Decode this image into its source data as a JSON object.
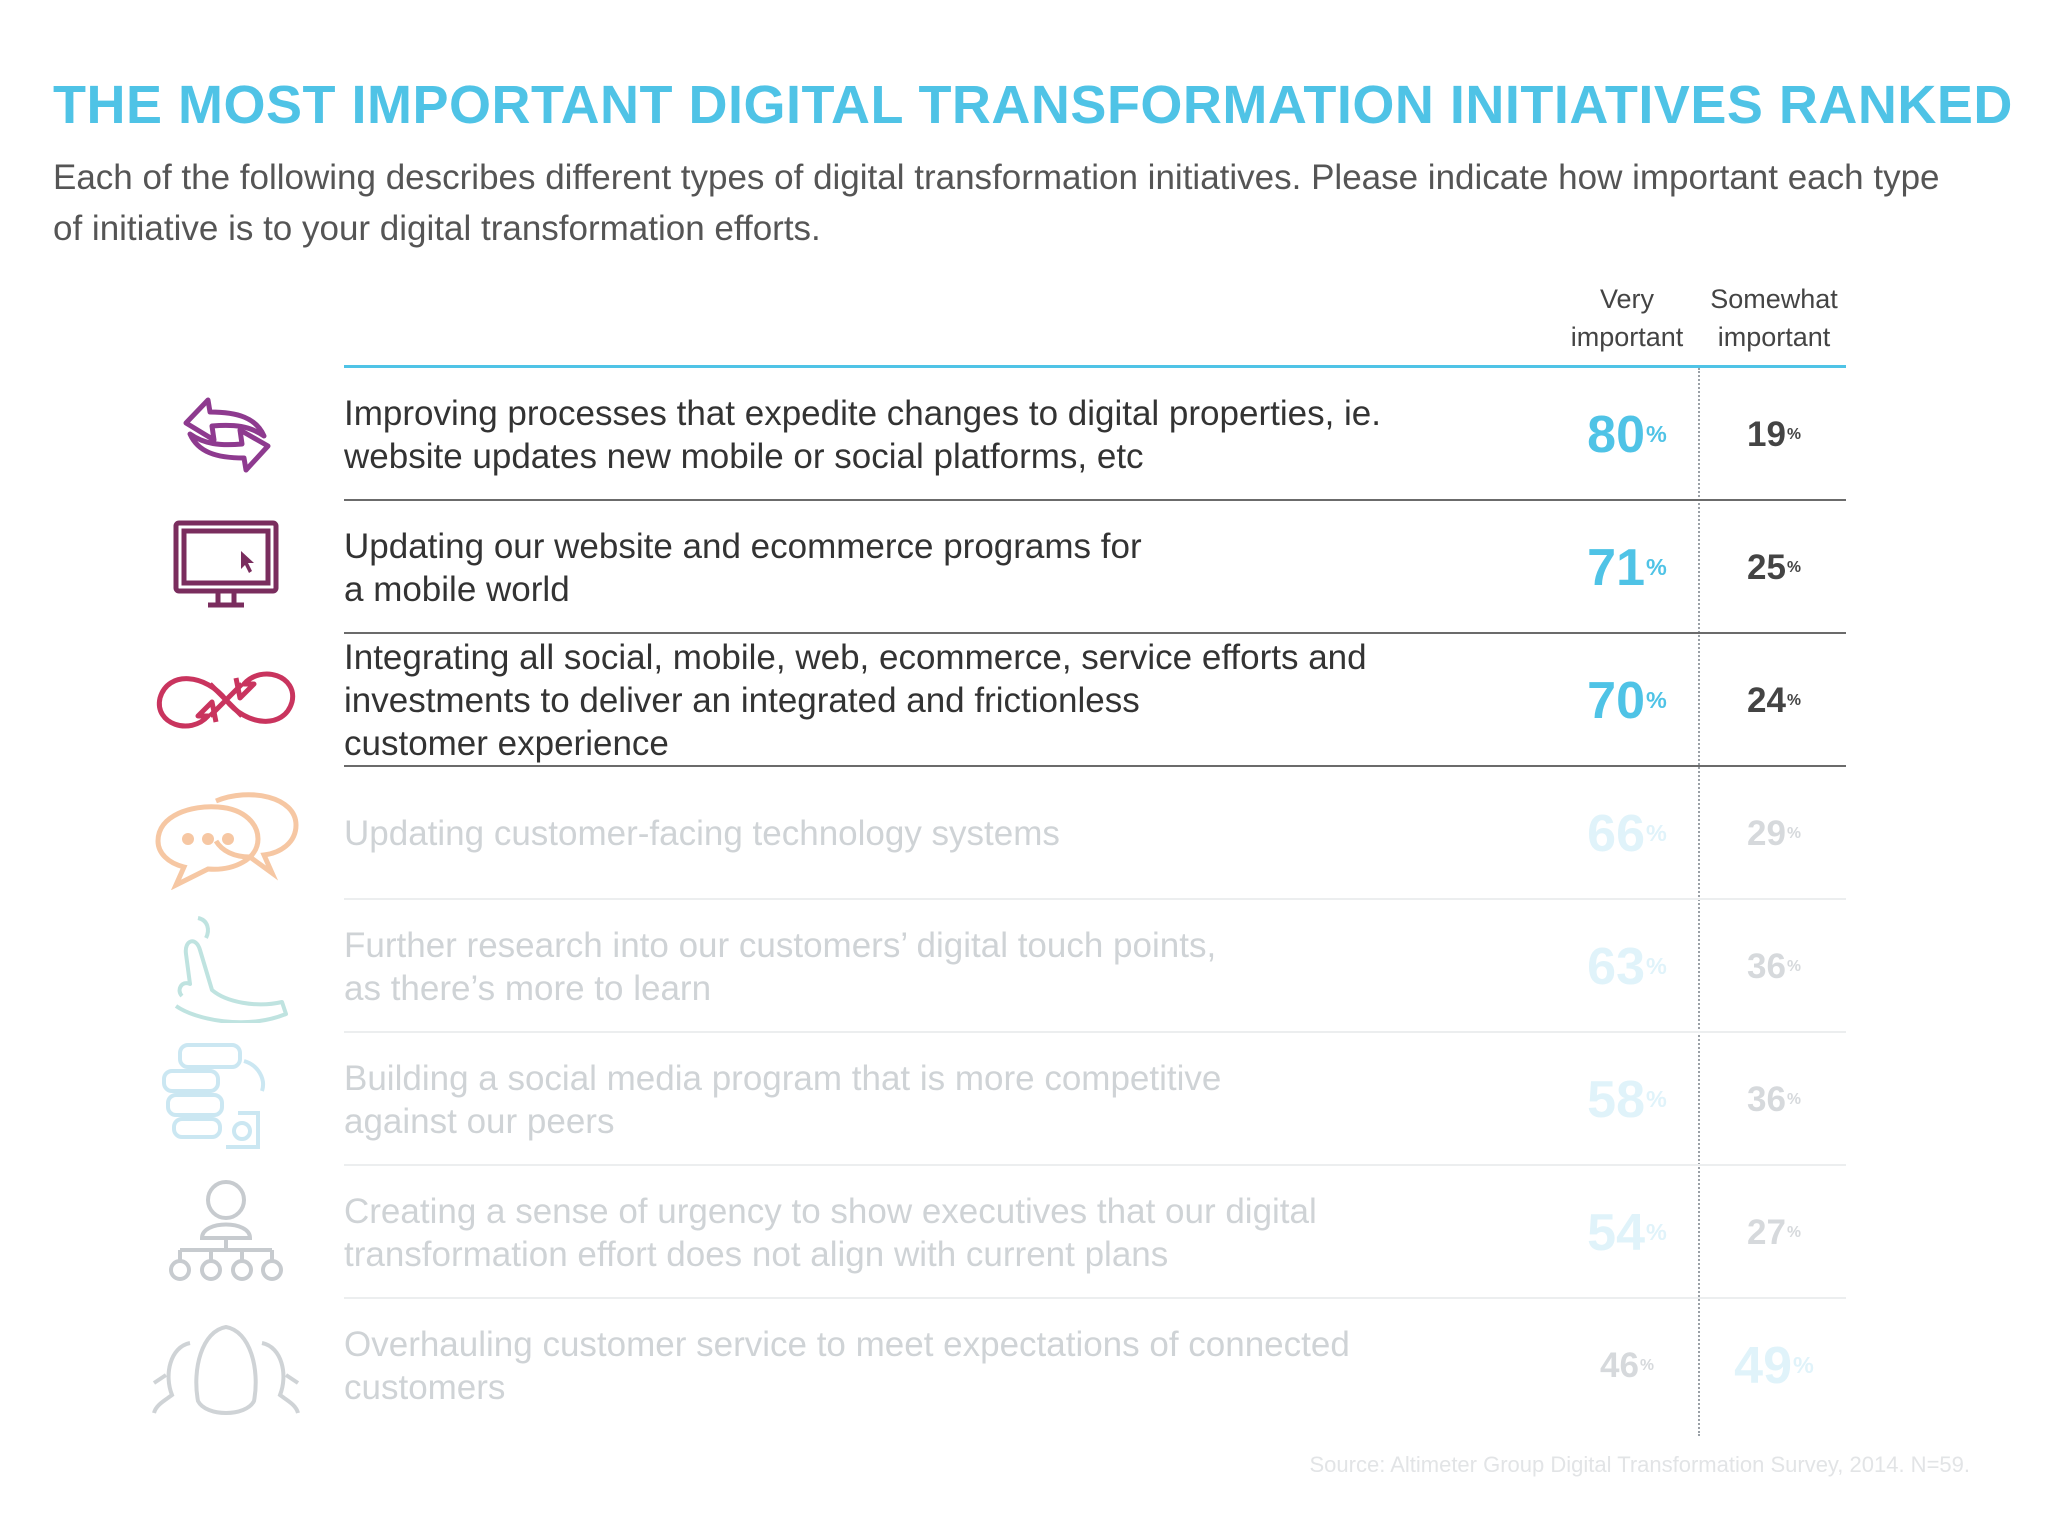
{
  "chart_data": {
    "type": "table",
    "title": "THE MOST IMPORTANT DIGITAL TRANSFORMATION INITIATIVES RANKED",
    "subtitle": "Each of the following describes different types of digital transformation initiatives. Please indicate how important each type of initiative is to your digital transformation efforts.",
    "columns": {
      "very": [
        "Very",
        "important"
      ],
      "somewhat": [
        "Somewhat",
        "important"
      ]
    },
    "pct_symbol": "%",
    "rows": [
      {
        "icon": "arrows-exchange-icon",
        "lines": [
          "Improving processes that expedite changes to digital properties, ie.",
          "website updates new mobile or social platforms, etc"
        ],
        "very": 80,
        "somewhat": 19,
        "color": "#8e3a8f"
      },
      {
        "icon": "monitor-cursor-icon",
        "lines": [
          "Updating our website and ecommerce programs for",
          "a mobile world"
        ],
        "very": 71,
        "somewhat": 25,
        "color": "#7a2d5e"
      },
      {
        "icon": "infinity-arrows-icon",
        "lines": [
          "Integrating all social, mobile, web, ecommerce, service efforts and",
          "investments to deliver an integrated and frictionless",
          "customer experience"
        ],
        "very": 70,
        "somewhat": 24,
        "color": "#c9345e"
      },
      {
        "icon": "speech-bubbles-icon",
        "lines": [
          "Updating customer-facing technology systems"
        ],
        "very": 66,
        "somewhat": 29,
        "color": "#f6c7a3"
      },
      {
        "icon": "hand-touch-icon",
        "lines": [
          "Further research into our customers’ digital touch points,",
          "as there’s more to learn"
        ],
        "very": 63,
        "somewhat": 36,
        "color": "#bfe3e0"
      },
      {
        "icon": "social-hands-icon",
        "lines": [
          "Building a social media program that is more competitive",
          "against our peers"
        ],
        "very": 58,
        "somewhat": 36,
        "color": "#cbe7f2"
      },
      {
        "icon": "org-chart-icon",
        "lines": [
          "Creating a sense of urgency to show executives that our digital",
          "transformation effort does not align with current plans"
        ],
        "very": 54,
        "somewhat": 27,
        "color": "#c7cbcf"
      },
      {
        "icon": "customer-group-icon",
        "lines": [
          "Overhauling customer service to meet expectations of connected",
          "customers"
        ],
        "very": 46,
        "somewhat": 49,
        "color": "#cfd3d6"
      }
    ],
    "source": "Source: Altimeter Group Digital Transformation Survey, 2014. N=59."
  },
  "colors": {
    "accent": "#4fc3e6",
    "text": "#333333"
  }
}
